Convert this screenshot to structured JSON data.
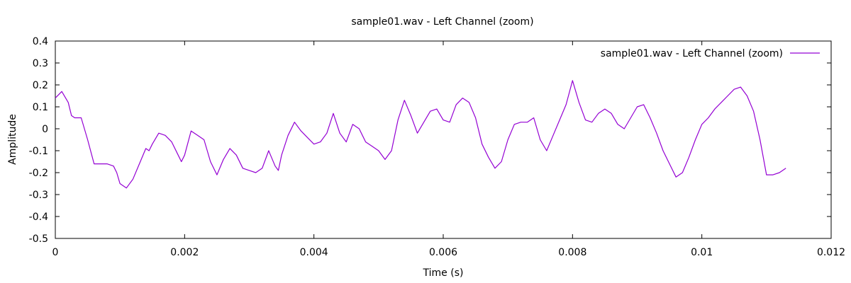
{
  "chart_data": {
    "type": "line",
    "title": "sample01.wav - Left Channel (zoom)",
    "xlabel": "Time (s)",
    "ylabel": "Amplitude",
    "xlim": [
      0,
      0.012
    ],
    "ylim": [
      -0.5,
      0.4
    ],
    "grid": false,
    "legend_position": "top-right",
    "x_ticks": [
      {
        "value": 0,
        "label": "0"
      },
      {
        "value": 0.002,
        "label": "0.002"
      },
      {
        "value": 0.004,
        "label": "0.004"
      },
      {
        "value": 0.006,
        "label": "0.006"
      },
      {
        "value": 0.008,
        "label": "0.008"
      },
      {
        "value": 0.01,
        "label": "0.01"
      },
      {
        "value": 0.012,
        "label": "0.012"
      }
    ],
    "y_ticks": [
      {
        "value": 0.4,
        "label": "0.4"
      },
      {
        "value": 0.3,
        "label": "0.3"
      },
      {
        "value": 0.2,
        "label": "0.2"
      },
      {
        "value": 0.1,
        "label": "0.1"
      },
      {
        "value": 0,
        "label": "0"
      },
      {
        "value": -0.1,
        "label": "-0.1"
      },
      {
        "value": -0.2,
        "label": "-0.2"
      },
      {
        "value": -0.3,
        "label": "-0.3"
      },
      {
        "value": -0.4,
        "label": "-0.4"
      },
      {
        "value": -0.5,
        "label": "-0.5"
      }
    ],
    "series": [
      {
        "name": "sample01.wav - Left Channel (zoom)",
        "color": "#9400d3",
        "points": [
          [
            0.0,
            0.14
          ],
          [
            0.0001,
            0.17
          ],
          [
            0.0002,
            0.12
          ],
          [
            0.00025,
            0.06
          ],
          [
            0.0003,
            0.05
          ],
          [
            0.0004,
            0.05
          ],
          [
            0.0005,
            -0.05
          ],
          [
            0.0006,
            -0.16
          ],
          [
            0.0007,
            -0.16
          ],
          [
            0.0008,
            -0.16
          ],
          [
            0.0009,
            -0.17
          ],
          [
            0.00095,
            -0.2
          ],
          [
            0.001,
            -0.25
          ],
          [
            0.0011,
            -0.27
          ],
          [
            0.0012,
            -0.23
          ],
          [
            0.0013,
            -0.16
          ],
          [
            0.0014,
            -0.09
          ],
          [
            0.00145,
            -0.1
          ],
          [
            0.0015,
            -0.07
          ],
          [
            0.0016,
            -0.02
          ],
          [
            0.0017,
            -0.03
          ],
          [
            0.0018,
            -0.06
          ],
          [
            0.0019,
            -0.12
          ],
          [
            0.00195,
            -0.15
          ],
          [
            0.002,
            -0.12
          ],
          [
            0.0021,
            -0.01
          ],
          [
            0.0022,
            -0.03
          ],
          [
            0.0023,
            -0.05
          ],
          [
            0.0024,
            -0.15
          ],
          [
            0.0025,
            -0.21
          ],
          [
            0.0026,
            -0.14
          ],
          [
            0.0027,
            -0.09
          ],
          [
            0.0028,
            -0.12
          ],
          [
            0.0029,
            -0.18
          ],
          [
            0.003,
            -0.19
          ],
          [
            0.0031,
            -0.2
          ],
          [
            0.0032,
            -0.18
          ],
          [
            0.0033,
            -0.1
          ],
          [
            0.0034,
            -0.17
          ],
          [
            0.00345,
            -0.19
          ],
          [
            0.0035,
            -0.12
          ],
          [
            0.0036,
            -0.03
          ],
          [
            0.0037,
            0.03
          ],
          [
            0.0038,
            -0.01
          ],
          [
            0.0039,
            -0.04
          ],
          [
            0.004,
            -0.07
          ],
          [
            0.0041,
            -0.06
          ],
          [
            0.0042,
            -0.02
          ],
          [
            0.0043,
            0.07
          ],
          [
            0.0044,
            -0.02
          ],
          [
            0.0045,
            -0.06
          ],
          [
            0.0046,
            0.02
          ],
          [
            0.0047,
            0.0
          ],
          [
            0.0048,
            -0.06
          ],
          [
            0.0049,
            -0.08
          ],
          [
            0.005,
            -0.1
          ],
          [
            0.0051,
            -0.14
          ],
          [
            0.0052,
            -0.1
          ],
          [
            0.0053,
            0.04
          ],
          [
            0.0054,
            0.13
          ],
          [
            0.0055,
            0.06
          ],
          [
            0.0056,
            -0.02
          ],
          [
            0.0057,
            0.03
          ],
          [
            0.0058,
            0.08
          ],
          [
            0.0059,
            0.09
          ],
          [
            0.006,
            0.04
          ],
          [
            0.0061,
            0.03
          ],
          [
            0.0062,
            0.11
          ],
          [
            0.0063,
            0.14
          ],
          [
            0.0064,
            0.12
          ],
          [
            0.0065,
            0.05
          ],
          [
            0.0066,
            -0.07
          ],
          [
            0.0067,
            -0.13
          ],
          [
            0.0068,
            -0.18
          ],
          [
            0.0069,
            -0.15
          ],
          [
            0.007,
            -0.05
          ],
          [
            0.0071,
            0.02
          ],
          [
            0.0072,
            0.03
          ],
          [
            0.0073,
            0.03
          ],
          [
            0.0074,
            0.05
          ],
          [
            0.0075,
            -0.05
          ],
          [
            0.0076,
            -0.1
          ],
          [
            0.0077,
            -0.03
          ],
          [
            0.0078,
            0.04
          ],
          [
            0.0079,
            0.11
          ],
          [
            0.008,
            0.22
          ],
          [
            0.0081,
            0.12
          ],
          [
            0.0082,
            0.04
          ],
          [
            0.0083,
            0.03
          ],
          [
            0.0084,
            0.07
          ],
          [
            0.0085,
            0.09
          ],
          [
            0.0086,
            0.07
          ],
          [
            0.0087,
            0.02
          ],
          [
            0.0088,
            0.0
          ],
          [
            0.0089,
            0.05
          ],
          [
            0.009,
            0.1
          ],
          [
            0.0091,
            0.11
          ],
          [
            0.0092,
            0.05
          ],
          [
            0.0093,
            -0.02
          ],
          [
            0.0094,
            -0.1
          ],
          [
            0.0095,
            -0.16
          ],
          [
            0.0096,
            -0.22
          ],
          [
            0.0097,
            -0.2
          ],
          [
            0.0098,
            -0.13
          ],
          [
            0.0099,
            -0.05
          ],
          [
            0.01,
            0.02
          ],
          [
            0.0101,
            0.05
          ],
          [
            0.0102,
            0.09
          ],
          [
            0.0103,
            0.12
          ],
          [
            0.0104,
            0.15
          ],
          [
            0.0105,
            0.18
          ],
          [
            0.0106,
            0.19
          ],
          [
            0.0107,
            0.15
          ],
          [
            0.0108,
            0.08
          ],
          [
            0.0109,
            -0.05
          ],
          [
            0.011,
            -0.21
          ],
          [
            0.0111,
            -0.21
          ],
          [
            0.0112,
            -0.2
          ],
          [
            0.0113,
            -0.18
          ]
        ]
      }
    ]
  }
}
